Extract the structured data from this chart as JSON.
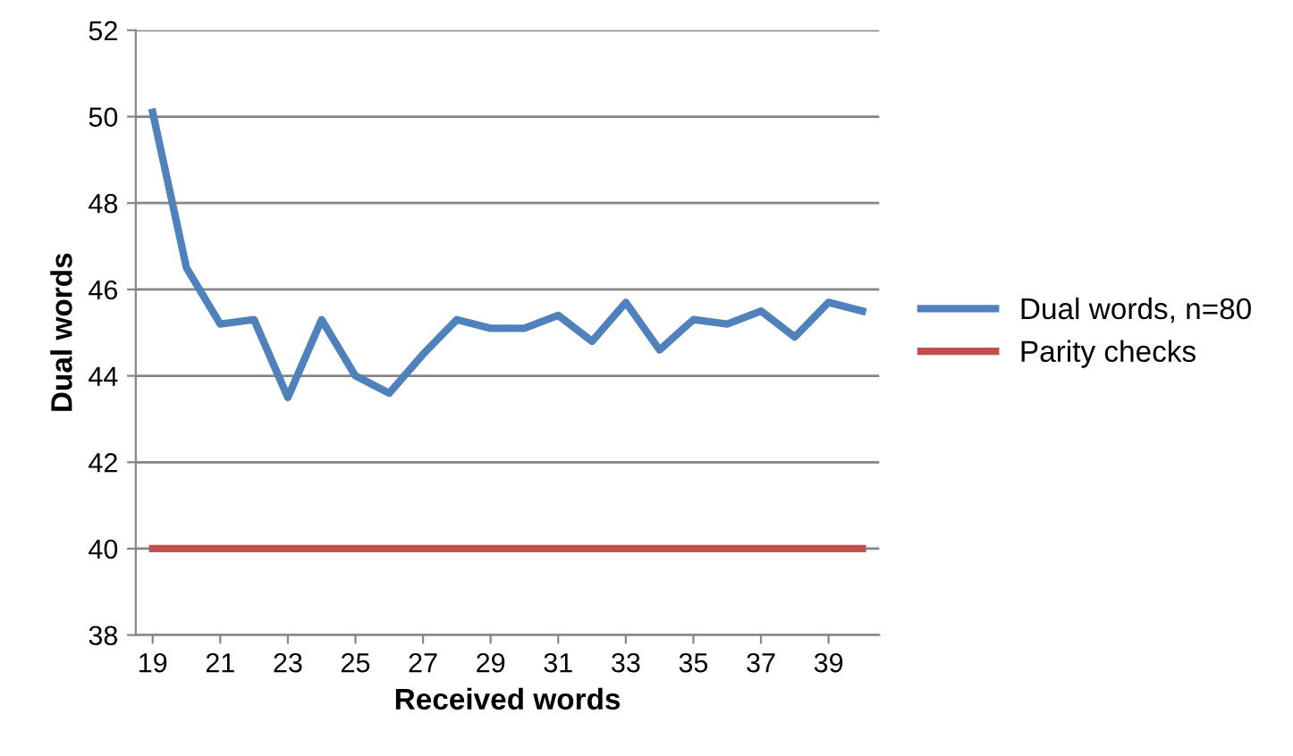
{
  "chart_data": {
    "type": "line",
    "xlabel": "Received words",
    "ylabel": "Dual words",
    "x": [
      19,
      20,
      21,
      22,
      23,
      24,
      25,
      26,
      27,
      28,
      29,
      30,
      31,
      32,
      33,
      34,
      35,
      36,
      37,
      38,
      39,
      40
    ],
    "series": [
      {
        "name": "Dual words, n=80",
        "color": "#4f81bd",
        "values": [
          50.1,
          46.5,
          45.2,
          45.3,
          43.5,
          45.3,
          44.0,
          43.6,
          44.5,
          45.3,
          45.1,
          45.1,
          45.4,
          44.8,
          45.7,
          44.6,
          45.3,
          45.2,
          45.5,
          44.9,
          45.7,
          45.5
        ]
      },
      {
        "name": "Parity checks",
        "color": "#c0504d",
        "values": [
          40,
          40,
          40,
          40,
          40,
          40,
          40,
          40,
          40,
          40,
          40,
          40,
          40,
          40,
          40,
          40,
          40,
          40,
          40,
          40,
          40,
          40
        ]
      }
    ],
    "xlim": [
      18.5,
      40.5
    ],
    "xticks": [
      19,
      21,
      23,
      25,
      27,
      29,
      31,
      33,
      35,
      37,
      39
    ],
    "ylim": [
      38,
      52
    ],
    "yticks": [
      38,
      40,
      42,
      44,
      46,
      48,
      50,
      52
    ],
    "grid": "y",
    "legend": "right",
    "marker": "none",
    "line_style": "solid"
  }
}
